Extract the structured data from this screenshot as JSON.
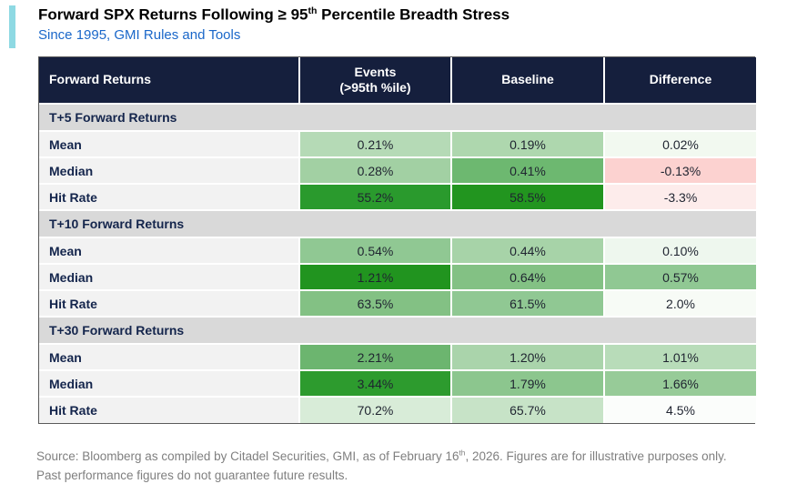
{
  "header": {
    "title_main": "Forward SPX Returns Following ≥ 95",
    "title_sup": "th",
    "title_rest": " Percentile Breadth Stress",
    "subtitle": "Since 1995, GMI Rules and Tools"
  },
  "theme": {
    "header_bg": "#151f3d",
    "section_bg": "#d9d9d9",
    "label_bg": "#f2f2f2",
    "navy_text": "#14254c",
    "value_text": "#1f2430",
    "subtitle_blue": "#1a67c9",
    "accent_cyan": "#8ed9e3",
    "footer_gray": "#7f7f7f",
    "outer_border": "#5a5a5a"
  },
  "table": {
    "header": {
      "col0": "Forward Returns",
      "col1_line1": "Events",
      "col1_line2": "(>95th %ile)",
      "col2": "Baseline",
      "col3": "Difference"
    },
    "sections": [
      {
        "label": "T+5 Forward Returns",
        "rows": [
          {
            "label": "Mean",
            "cells": [
              {
                "value": "0.21%",
                "bg": "#b5dab6"
              },
              {
                "value": "0.19%",
                "bg": "#aed7ae"
              },
              {
                "value": "0.02%",
                "bg": "#f2f9f0"
              }
            ]
          },
          {
            "label": "Median",
            "cells": [
              {
                "value": "0.28%",
                "bg": "#a2d0a3"
              },
              {
                "value": "0.41%",
                "bg": "#6db870"
              },
              {
                "value": "-0.13%",
                "bg": "#fcd2d0"
              }
            ]
          },
          {
            "label": "Hit Rate",
            "cells": [
              {
                "value": "55.2%",
                "bg": "#2a9a2d"
              },
              {
                "value": "58.5%",
                "bg": "#22951f"
              },
              {
                "value": "-3.3%",
                "bg": "#fdeceb"
              }
            ]
          }
        ]
      },
      {
        "label": "T+10 Forward Returns",
        "rows": [
          {
            "label": "Mean",
            "cells": [
              {
                "value": "0.54%",
                "bg": "#90c893"
              },
              {
                "value": "0.44%",
                "bg": "#a7d3a8"
              },
              {
                "value": "0.10%",
                "bg": "#eef7ee"
              }
            ]
          },
          {
            "label": "Median",
            "cells": [
              {
                "value": "1.21%",
                "bg": "#21941f"
              },
              {
                "value": "0.64%",
                "bg": "#83c184"
              },
              {
                "value": "0.57%",
                "bg": "#90c893"
              }
            ]
          },
          {
            "label": "Hit Rate",
            "cells": [
              {
                "value": "63.5%",
                "bg": "#83c184"
              },
              {
                "value": "61.5%",
                "bg": "#90c893"
              },
              {
                "value": "2.0%",
                "bg": "#f7fbf6"
              }
            ]
          }
        ]
      },
      {
        "label": "T+30 Forward Returns",
        "rows": [
          {
            "label": "Mean",
            "cells": [
              {
                "value": "2.21%",
                "bg": "#6cb56f"
              },
              {
                "value": "1.20%",
                "bg": "#aad4ab"
              },
              {
                "value": "1.01%",
                "bg": "#b8dcb9"
              }
            ]
          },
          {
            "label": "Median",
            "cells": [
              {
                "value": "3.44%",
                "bg": "#2d9b2e"
              },
              {
                "value": "1.79%",
                "bg": "#8cc68e"
              },
              {
                "value": "1.66%",
                "bg": "#97cb98"
              }
            ]
          },
          {
            "label": "Hit Rate",
            "cells": [
              {
                "value": "70.2%",
                "bg": "#d8ecd8"
              },
              {
                "value": "65.7%",
                "bg": "#c7e3c7"
              },
              {
                "value": "4.5%",
                "bg": "#fbfdfb"
              }
            ]
          }
        ]
      }
    ]
  },
  "footer": {
    "line1_pre": "Source: Bloomberg as compiled by Citadel Securities, GMI, as of February 16",
    "line1_sup": "th",
    "line1_post": ", 2026. Figures are for illustrative purposes only.",
    "line2": "Past performance figures do not guarantee future results."
  },
  "chart_data": {
    "type": "table",
    "title": "Forward SPX Returns Following ≥ 95th Percentile Breadth Stress",
    "subtitle": "Since 1995, GMI Rules and Tools",
    "columns": [
      "Forward Returns",
      "Events (>95th %ile)",
      "Baseline",
      "Difference"
    ],
    "sections": [
      {
        "name": "T+5 Forward Returns",
        "rows": [
          {
            "metric": "Mean",
            "events": "0.21%",
            "baseline": "0.19%",
            "difference": "0.02%"
          },
          {
            "metric": "Median",
            "events": "0.28%",
            "baseline": "0.41%",
            "difference": "-0.13%"
          },
          {
            "metric": "Hit Rate",
            "events": "55.2%",
            "baseline": "58.5%",
            "difference": "-3.3%"
          }
        ]
      },
      {
        "name": "T+10 Forward Returns",
        "rows": [
          {
            "metric": "Mean",
            "events": "0.54%",
            "baseline": "0.44%",
            "difference": "0.10%"
          },
          {
            "metric": "Median",
            "events": "1.21%",
            "baseline": "0.64%",
            "difference": "0.57%"
          },
          {
            "metric": "Hit Rate",
            "events": "63.5%",
            "baseline": "61.5%",
            "difference": "2.0%"
          }
        ]
      },
      {
        "name": "T+30 Forward Returns",
        "rows": [
          {
            "metric": "Mean",
            "events": "2.21%",
            "baseline": "1.20%",
            "difference": "1.01%"
          },
          {
            "metric": "Median",
            "events": "3.44%",
            "baseline": "1.79%",
            "difference": "1.66%"
          },
          {
            "metric": "Hit Rate",
            "events": "70.2%",
            "baseline": "65.7%",
            "difference": "4.5%"
          }
        ]
      }
    ],
    "shading": "green intensity encodes positive magnitude, pink encodes negative values",
    "source": "Source: Bloomberg as compiled by Citadel Securities, GMI, as of February 16th, 2026. Figures are for illustrative purposes only. Past performance figures do not guarantee future results."
  }
}
